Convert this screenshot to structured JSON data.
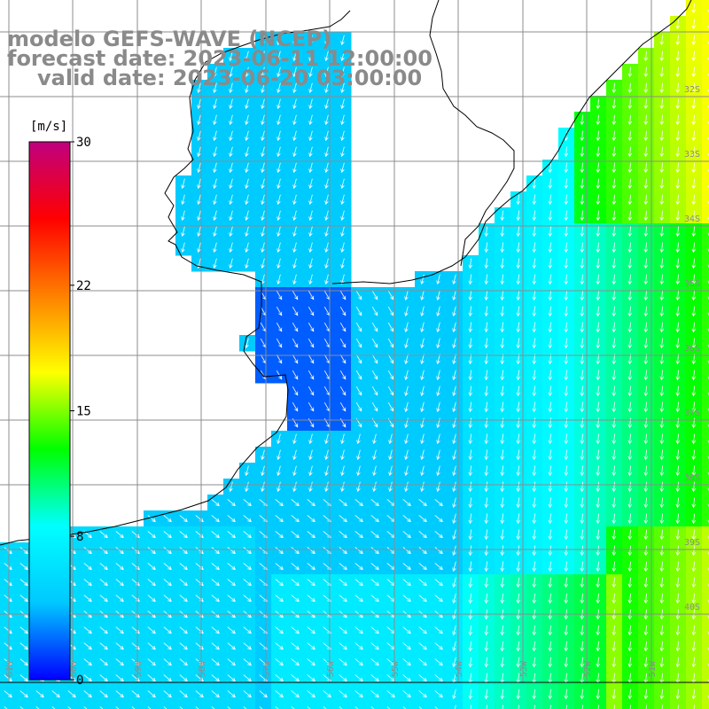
{
  "title": {
    "line1": "modelo GEFS-WAVE (NCEP)",
    "line2": "forecast date: 2023-06-11 12:00:00",
    "line3": "valid date: 2023-06-20 03:00:00"
  },
  "colorbar": {
    "unit": "[m/s]",
    "ticks": [
      {
        "value": 30,
        "label": "30"
      },
      {
        "value": 22,
        "label": "22"
      },
      {
        "value": 15,
        "label": "15"
      },
      {
        "value": 8,
        "label": "8"
      },
      {
        "value": 0,
        "label": "0"
      }
    ],
    "vmin": 0,
    "vmax": 30,
    "stops": [
      "#0000ff",
      "#00c8ff",
      "#00ffff",
      "#00ff00",
      "#ffff00",
      "#ff8000",
      "#ff0000",
      "#c0007f"
    ]
  },
  "lat_labels": [
    "32S",
    "33S",
    "34S",
    "35S",
    "36S",
    "37S",
    "38S",
    "39S",
    "40S"
  ],
  "lon_labels": [
    "61W",
    "60W",
    "59W",
    "58W",
    "57W",
    "56W",
    "55W",
    "54W",
    "53W",
    "52W",
    "51W"
  ],
  "colors": {
    "land": "#ffffff",
    "grid": "#8c8c8c",
    "coast": "#000000",
    "arrow": "#ffffff"
  }
}
